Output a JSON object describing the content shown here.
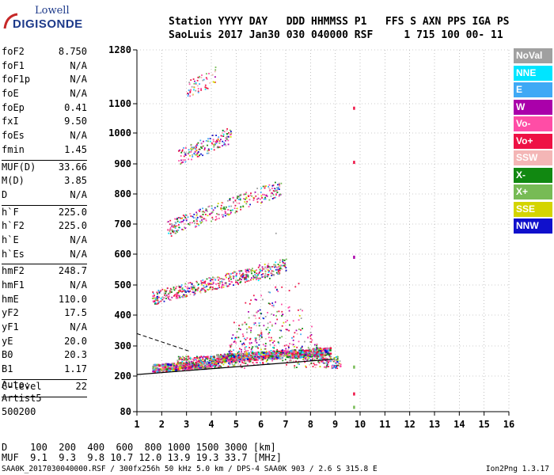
{
  "logo": {
    "line1": "Lowell",
    "line2": "DIGISONDE"
  },
  "header": {
    "line1": "Station YYYY DAY   DDD HHMMSS P1   FFS S AXN PPS IGA PS",
    "line2": "SaoLuis 2017 Jan30 030 040000 RSF     1 715 100 00- 11"
  },
  "params": [
    {
      "k": "foF2",
      "v": "8.750"
    },
    {
      "k": "foF1",
      "v": "N/A"
    },
    {
      "k": "foF1p",
      "v": "N/A"
    },
    {
      "k": "foE",
      "v": "N/A"
    },
    {
      "k": "foEp",
      "v": "0.41"
    },
    {
      "k": "fxI",
      "v": "9.50"
    },
    {
      "k": "foEs",
      "v": "N/A"
    },
    {
      "k": "fmin",
      "v": "1.45"
    },
    {
      "sep": true
    },
    {
      "k": "MUF(D)",
      "v": "33.66"
    },
    {
      "k": "M(D)",
      "v": "3.85"
    },
    {
      "k": "D",
      "v": "N/A"
    },
    {
      "sep": true
    },
    {
      "k": "h`F",
      "v": "225.0"
    },
    {
      "k": "h`F2",
      "v": "225.0"
    },
    {
      "k": "h`E",
      "v": "N/A"
    },
    {
      "k": "h`Es",
      "v": "N/A"
    },
    {
      "sep": true
    },
    {
      "k": "hmF2",
      "v": "248.7"
    },
    {
      "k": "hmF1",
      "v": "N/A"
    },
    {
      "k": "hmE",
      "v": "110.0"
    },
    {
      "k": "yF2",
      "v": "17.5"
    },
    {
      "k": "yF1",
      "v": "N/A"
    },
    {
      "k": "yE",
      "v": "20.0"
    },
    {
      "k": "B0",
      "v": "20.3"
    },
    {
      "k": "B1",
      "v": "1.17"
    },
    {
      "sep": true
    },
    {
      "k": "C-level",
      "v": "22"
    },
    {
      "sep": true
    }
  ],
  "auto": {
    "line1": "Auto:",
    "line2": "Artist5",
    "line3": "500200"
  },
  "legend": [
    {
      "label": "NoVal",
      "color": "#a0a0a0"
    },
    {
      "label": "NNE",
      "color": "#00e5ff"
    },
    {
      "label": "E",
      "color": "#3fa9f5"
    },
    {
      "label": "W",
      "color": "#aa00aa"
    },
    {
      "label": "Vo-",
      "color": "#ff4da6"
    },
    {
      "label": "Vo+",
      "color": "#ee1144"
    },
    {
      "label": "SSW",
      "color": "#f4b6b6"
    },
    {
      "label": "X-",
      "color": "#118811"
    },
    {
      "label": "X+",
      "color": "#77bb55"
    },
    {
      "label": "SSE",
      "color": "#d4d400"
    },
    {
      "label": "NNW",
      "color": "#1010cc"
    }
  ],
  "dmuf": {
    "line1": "D    100  200  400  600  800 1000 1500 3000 [km]",
    "line2": "MUF  9.1  9.3  9.8 10.7 12.0 13.9 19.3 33.7 [MHz]"
  },
  "footer": "SAA0K_2017030040000.RSF / 300fx256h 50 kHz 5.0 km / DPS-4 SAA0K 903 / 2.6 S 315.8 E",
  "version": "Ion2Png 1.3.17",
  "chart_data": {
    "type": "scatter",
    "xlim": [
      1,
      16
    ],
    "ylim": [
      80,
      1280
    ],
    "xticks": [
      1,
      2,
      3,
      4,
      5,
      6,
      7,
      8,
      9,
      10,
      11,
      12,
      13,
      14,
      15,
      16
    ],
    "yticks": [
      80,
      200,
      300,
      400,
      500,
      600,
      700,
      800,
      900,
      1000,
      1100,
      1280
    ],
    "grid": "dotted",
    "legend_position": "right",
    "traces": [
      {
        "echo": "F1",
        "x": [
          1.6,
          8.8
        ],
        "y_start": 228,
        "y_slope": 5,
        "spread": 25,
        "n": 900
      },
      {
        "echo": "F2",
        "x": [
          1.6,
          7.0
        ],
        "y_start": 458,
        "y_slope": 20,
        "spread": 45,
        "n": 500
      },
      {
        "echo": "F3",
        "x": [
          2.2,
          6.8
        ],
        "y_start": 685,
        "y_slope": 30,
        "spread": 55,
        "n": 320
      },
      {
        "echo": "F4",
        "x": [
          2.6,
          4.8
        ],
        "y_start": 920,
        "y_slope": 35,
        "spread": 55,
        "n": 160
      },
      {
        "echo": "F5",
        "x": [
          3.0,
          4.2
        ],
        "y_start": 1150,
        "y_slope": 40,
        "spread": 60,
        "n": 60
      },
      {
        "echo": "spread-F",
        "x": [
          2.6,
          9.2
        ],
        "y_start": 300,
        "y_slope": 0,
        "spread": 120,
        "n": 900
      }
    ],
    "interference_line": {
      "x": 9.75,
      "y": [
        80,
        1130
      ]
    },
    "profile_line": {
      "x": [
        1.0,
        8.9
      ],
      "y": [
        205,
        256
      ]
    },
    "extrap_line": {
      "x": [
        1.0,
        3.1
      ],
      "y": [
        340,
        283
      ]
    }
  }
}
